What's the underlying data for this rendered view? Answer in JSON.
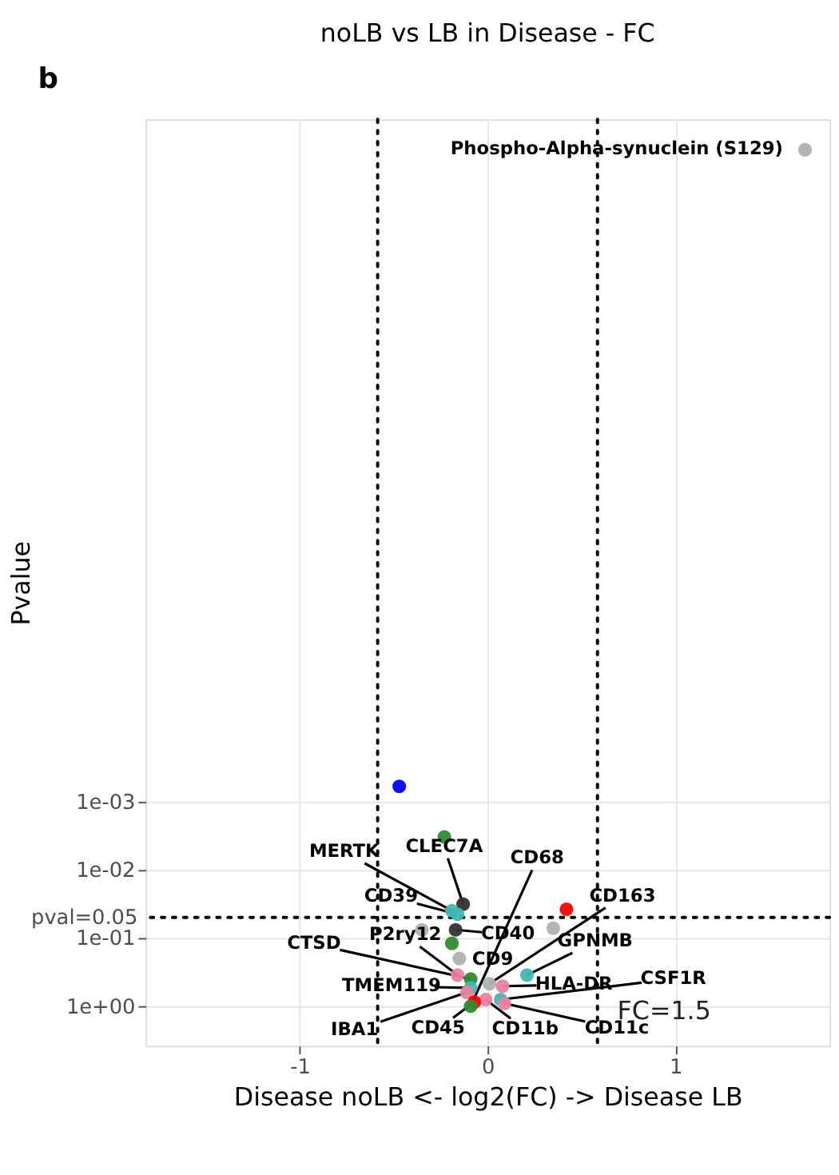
{
  "chart_data": {
    "type": "scatter",
    "title": "noLB vs LB in Disease - FC",
    "xlabel": "Disease noLB <- log2(FC) -> Disease LB",
    "ylabel": "Pvalue",
    "x": [
      -0.47,
      -0.23,
      -0.13,
      -0.19,
      -0.16,
      0.42,
      -0.35,
      -0.17,
      0.35,
      -0.19,
      -0.15,
      0.21,
      -0.16,
      -0.09,
      0.01,
      0.08,
      -0.09,
      -0.11,
      -0.01,
      0.07,
      -0.07,
      0.09,
      -0.09,
      1.69
    ],
    "values": [
      0.0006,
      0.0033,
      0.032,
      0.04,
      0.045,
      0.038,
      0.076,
      0.076,
      0.072,
      0.12,
      0.2,
      0.35,
      0.35,
      0.4,
      0.47,
      0.51,
      0.54,
      0.63,
      0.8,
      0.8,
      0.87,
      0.91,
      1.0,
      2.8e-13
    ],
    "colors": [
      "#0000ff",
      "#2e8b2e",
      "#333333",
      "#3fb7b7",
      "#3fb7b7",
      "#ff0000",
      "#b0b0b0",
      "#333333",
      "#b0b0b0",
      "#2e8b2e",
      "#b0b0b0",
      "#3fb7b7",
      "#ea7fa0",
      "#2e8b2e",
      "#b0b0b0",
      "#ea7fa0",
      "#3fb7b7",
      "#ea7fa0",
      "#ea7fa0",
      "#3fb7b7",
      "#ff0000",
      "#ea7fa0",
      "#2e8b2e",
      "#b0b0b0"
    ],
    "xlim": [
      -1.82,
      1.82
    ],
    "xticks": [
      -1,
      0,
      1
    ],
    "ylim": [
      3.8,
      1e-13
    ],
    "yticks": [
      {
        "value": 1,
        "label": "1e+00"
      },
      {
        "value": 0.1,
        "label": "1e-01"
      },
      {
        "value": 0.01,
        "label": "1e-02"
      },
      {
        "value": 0.001,
        "label": "1e-03"
      }
    ],
    "log": "y",
    "grid": true,
    "marker": "circle",
    "ref_lines": [
      {
        "axis": "y",
        "value": 0.05,
        "label": "pval=0.05",
        "line_style": "dotted"
      },
      {
        "axis": "x",
        "value": -0.585,
        "line_style": "dotted"
      },
      {
        "axis": "x",
        "value": 0.585,
        "line_style": "dotted"
      }
    ],
    "annotations": [
      "b",
      "FC=1.5",
      {
        "text": "Phospho-Alpha-synuclein (S129)",
        "x": 1.69,
        "y": 2.8e-13
      },
      {
        "text": "MERTK",
        "x": -0.19,
        "y": 0.04
      },
      {
        "text": "CLEC7A",
        "x": -0.13,
        "y": 0.032
      },
      {
        "text": "CD39",
        "x": -0.16,
        "y": 0.045
      },
      {
        "text": "CD40",
        "x": -0.17,
        "y": 0.076
      },
      {
        "text": "CD163",
        "x": 0.01,
        "y": 0.47
      },
      {
        "text": "GPNMB",
        "x": 0.21,
        "y": 0.35
      },
      {
        "text": "HLA-DR",
        "x": 0.08,
        "y": 0.51
      },
      {
        "text": "CSF1R",
        "x": 0.07,
        "y": 0.8
      },
      {
        "text": "CD11c",
        "x": 0.09,
        "y": 0.91
      },
      {
        "text": "CD11b",
        "x": -0.01,
        "y": 0.8
      },
      {
        "text": "CD45",
        "x": -0.07,
        "y": 0.87
      },
      {
        "text": "IBA1",
        "x": -0.11,
        "y": 0.63
      },
      {
        "text": "TMEM119",
        "x": -0.09,
        "y": 0.54
      },
      {
        "text": "CTSD",
        "x": -0.09,
        "y": 0.4
      },
      {
        "text": "P2ry12",
        "x": -0.16,
        "y": 0.35
      },
      {
        "text": "CD9",
        "x": -0.15,
        "y": 0.2
      },
      {
        "text": "CD68",
        "x": -0.09,
        "y": 1.0
      }
    ]
  }
}
